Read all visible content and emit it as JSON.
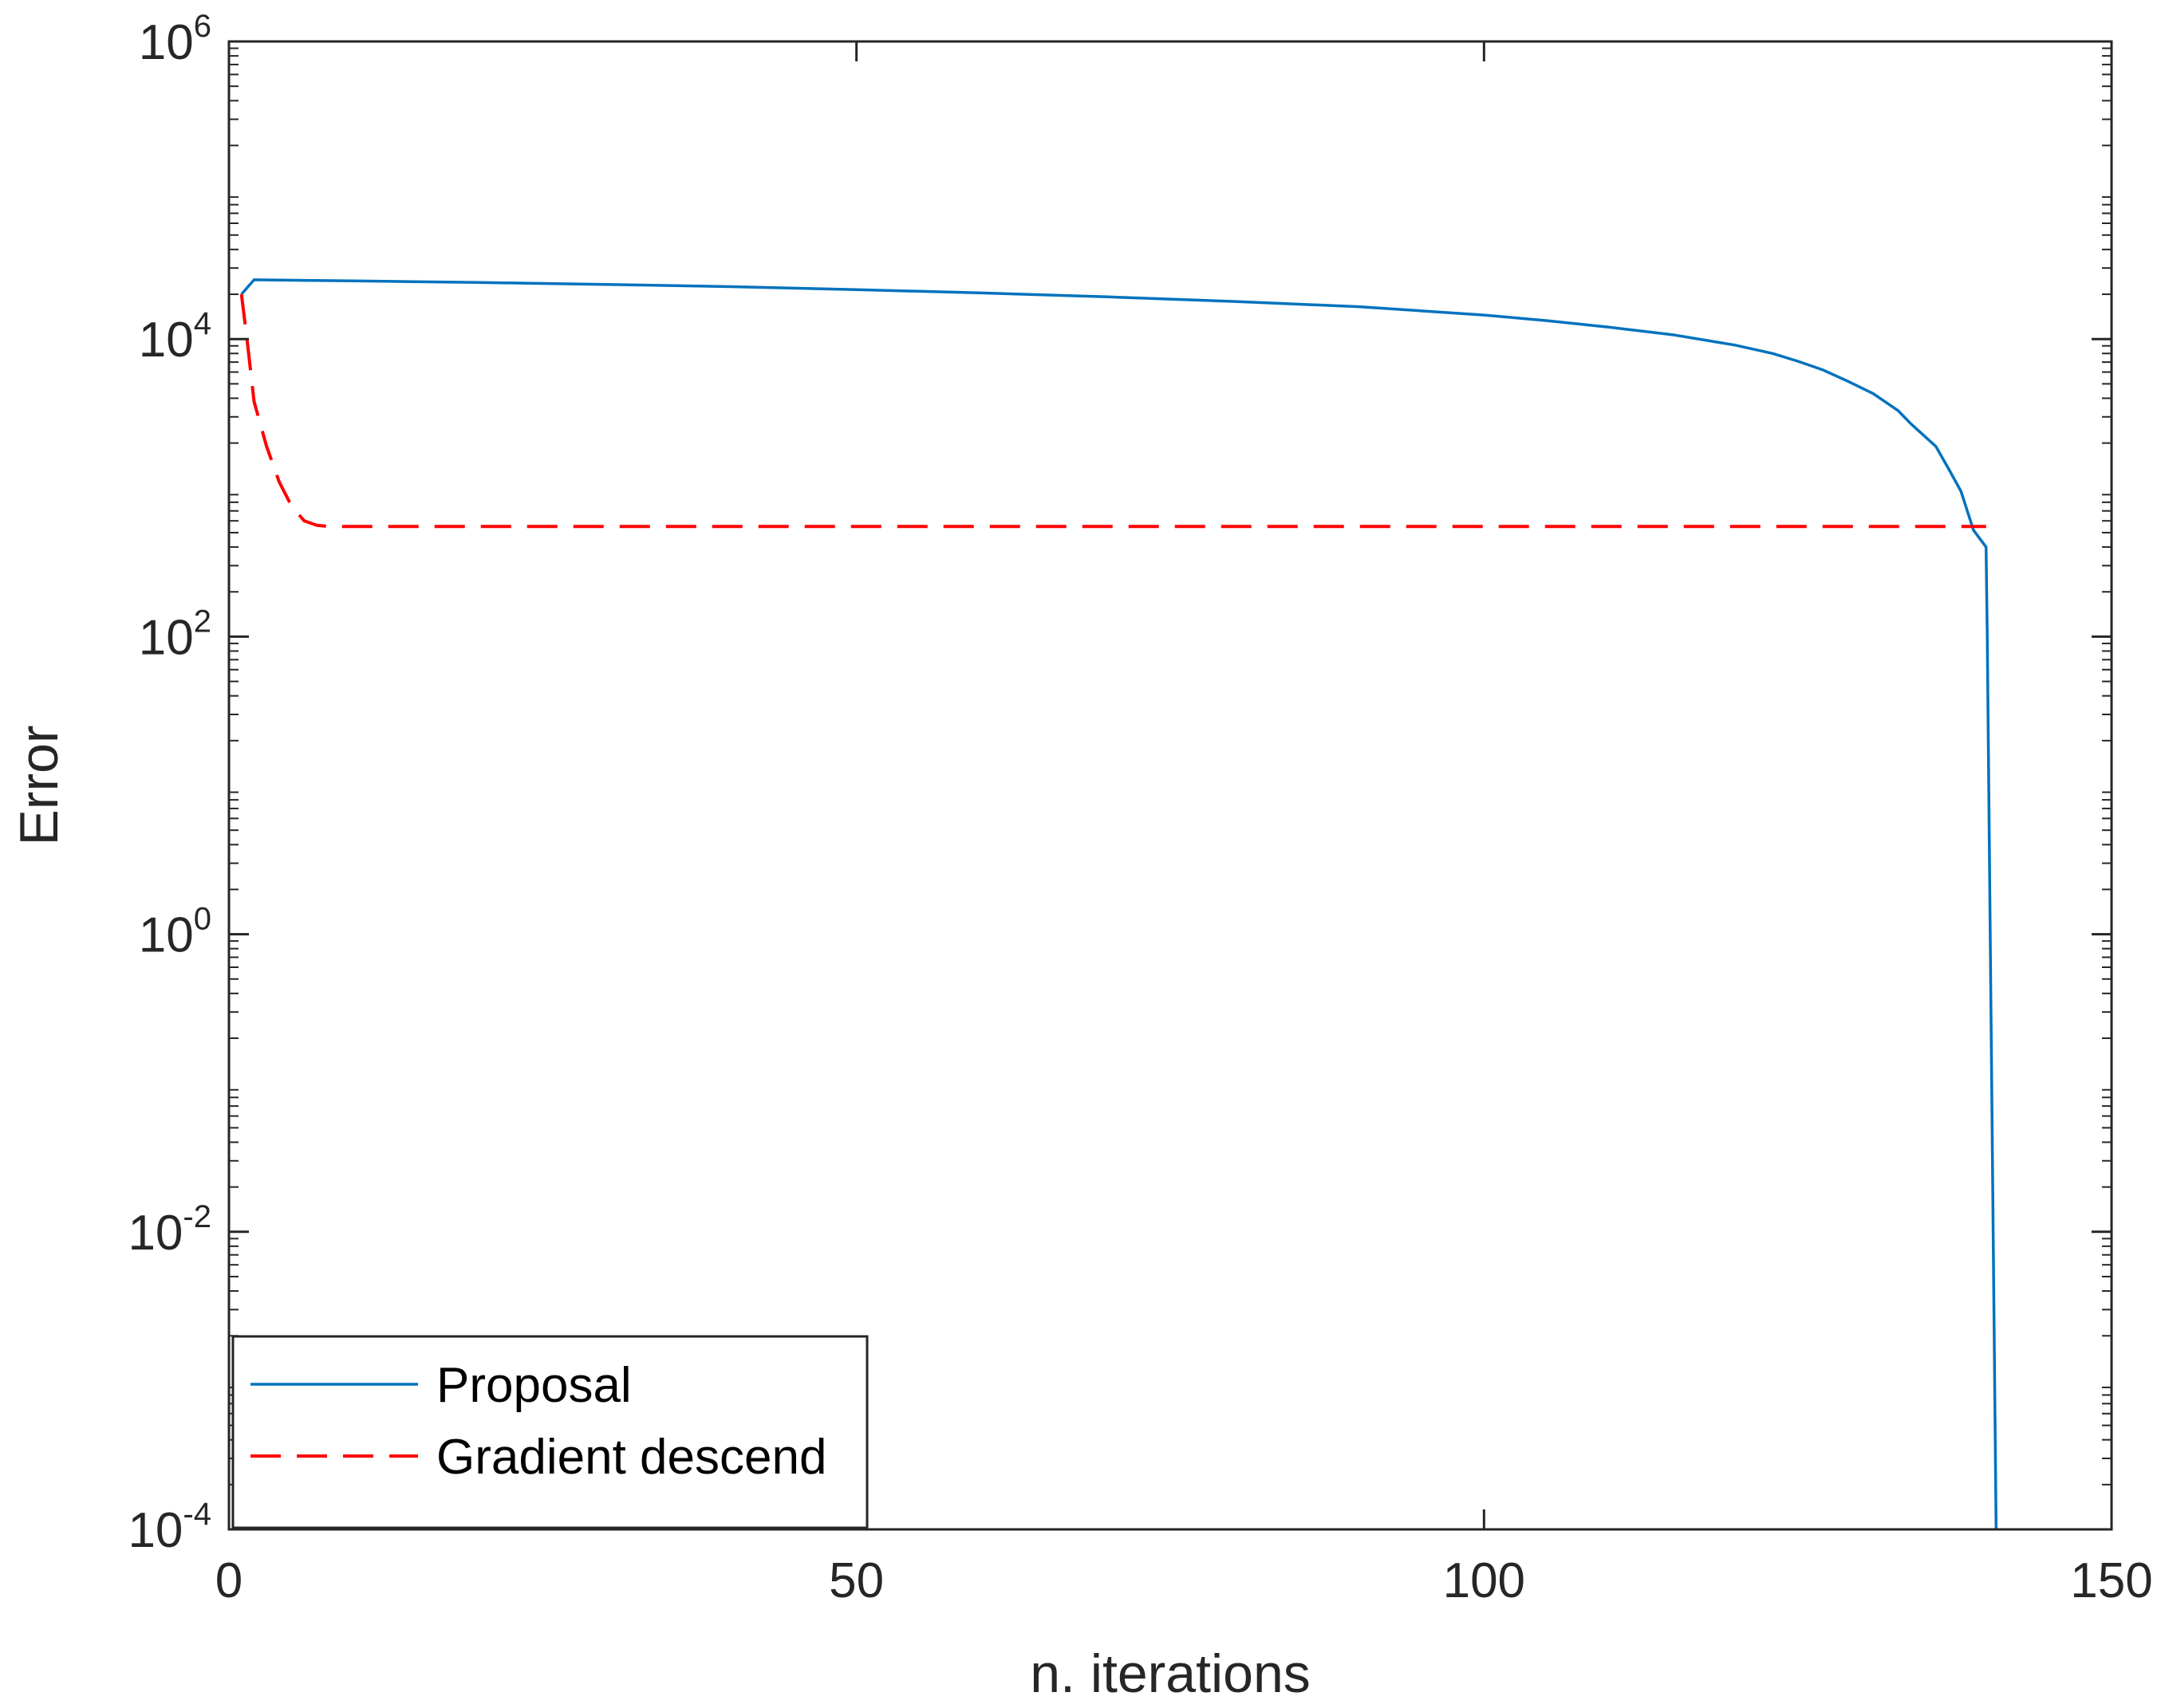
{
  "chart_data": {
    "type": "line",
    "xlabel": "n. iterations",
    "ylabel": "Error",
    "xlim": [
      0,
      150
    ],
    "ylim": [
      0.0001,
      1000000
    ],
    "yscale": "log",
    "grid": false,
    "legend_position": "bottom-left",
    "x_ticks": [
      {
        "value": 0,
        "label": "0"
      },
      {
        "value": 50,
        "label": "50"
      },
      {
        "value": 100,
        "label": "100"
      },
      {
        "value": 150,
        "label": "150"
      }
    ],
    "y_ticks": [
      {
        "value": 0.0001,
        "base": "10",
        "exp": "-4"
      },
      {
        "value": 0.01,
        "base": "10",
        "exp": "-2"
      },
      {
        "value": 1,
        "base": "10",
        "exp": "0"
      },
      {
        "value": 100,
        "base": "10",
        "exp": "2"
      },
      {
        "value": 10000,
        "base": "10",
        "exp": "4"
      },
      {
        "value": 1000000,
        "base": "10",
        "exp": "6"
      }
    ],
    "series": [
      {
        "name": "Proposal",
        "color": "#0072BD",
        "style": "solid",
        "x": [
          1,
          2,
          10,
          20,
          30,
          40,
          50,
          60,
          70,
          80,
          90,
          100,
          105,
          110,
          115,
          120,
          123,
          125,
          127,
          129,
          131,
          133,
          134,
          136,
          137,
          138,
          139,
          140,
          140.1,
          140.8
        ],
        "y": [
          20000,
          25000,
          24600,
          24000,
          23300,
          22500,
          21500,
          20400,
          19200,
          17900,
          16500,
          14500,
          13300,
          12000,
          10700,
          9100,
          8000,
          7100,
          6200,
          5200,
          4300,
          3300,
          2700,
          1900,
          1350,
          950,
          520,
          400,
          100,
          0.0001
        ]
      },
      {
        "name": "Gradient descend",
        "color": "#FF0000",
        "style": "dashed",
        "x": [
          1,
          1.5,
          2,
          3,
          4,
          5,
          6,
          7,
          8,
          20,
          40,
          60,
          80,
          100,
          120,
          140
        ],
        "y": [
          20000,
          9000,
          3800,
          1900,
          1100,
          750,
          600,
          560,
          550,
          550,
          550,
          550,
          550,
          550,
          550,
          550
        ]
      }
    ]
  }
}
